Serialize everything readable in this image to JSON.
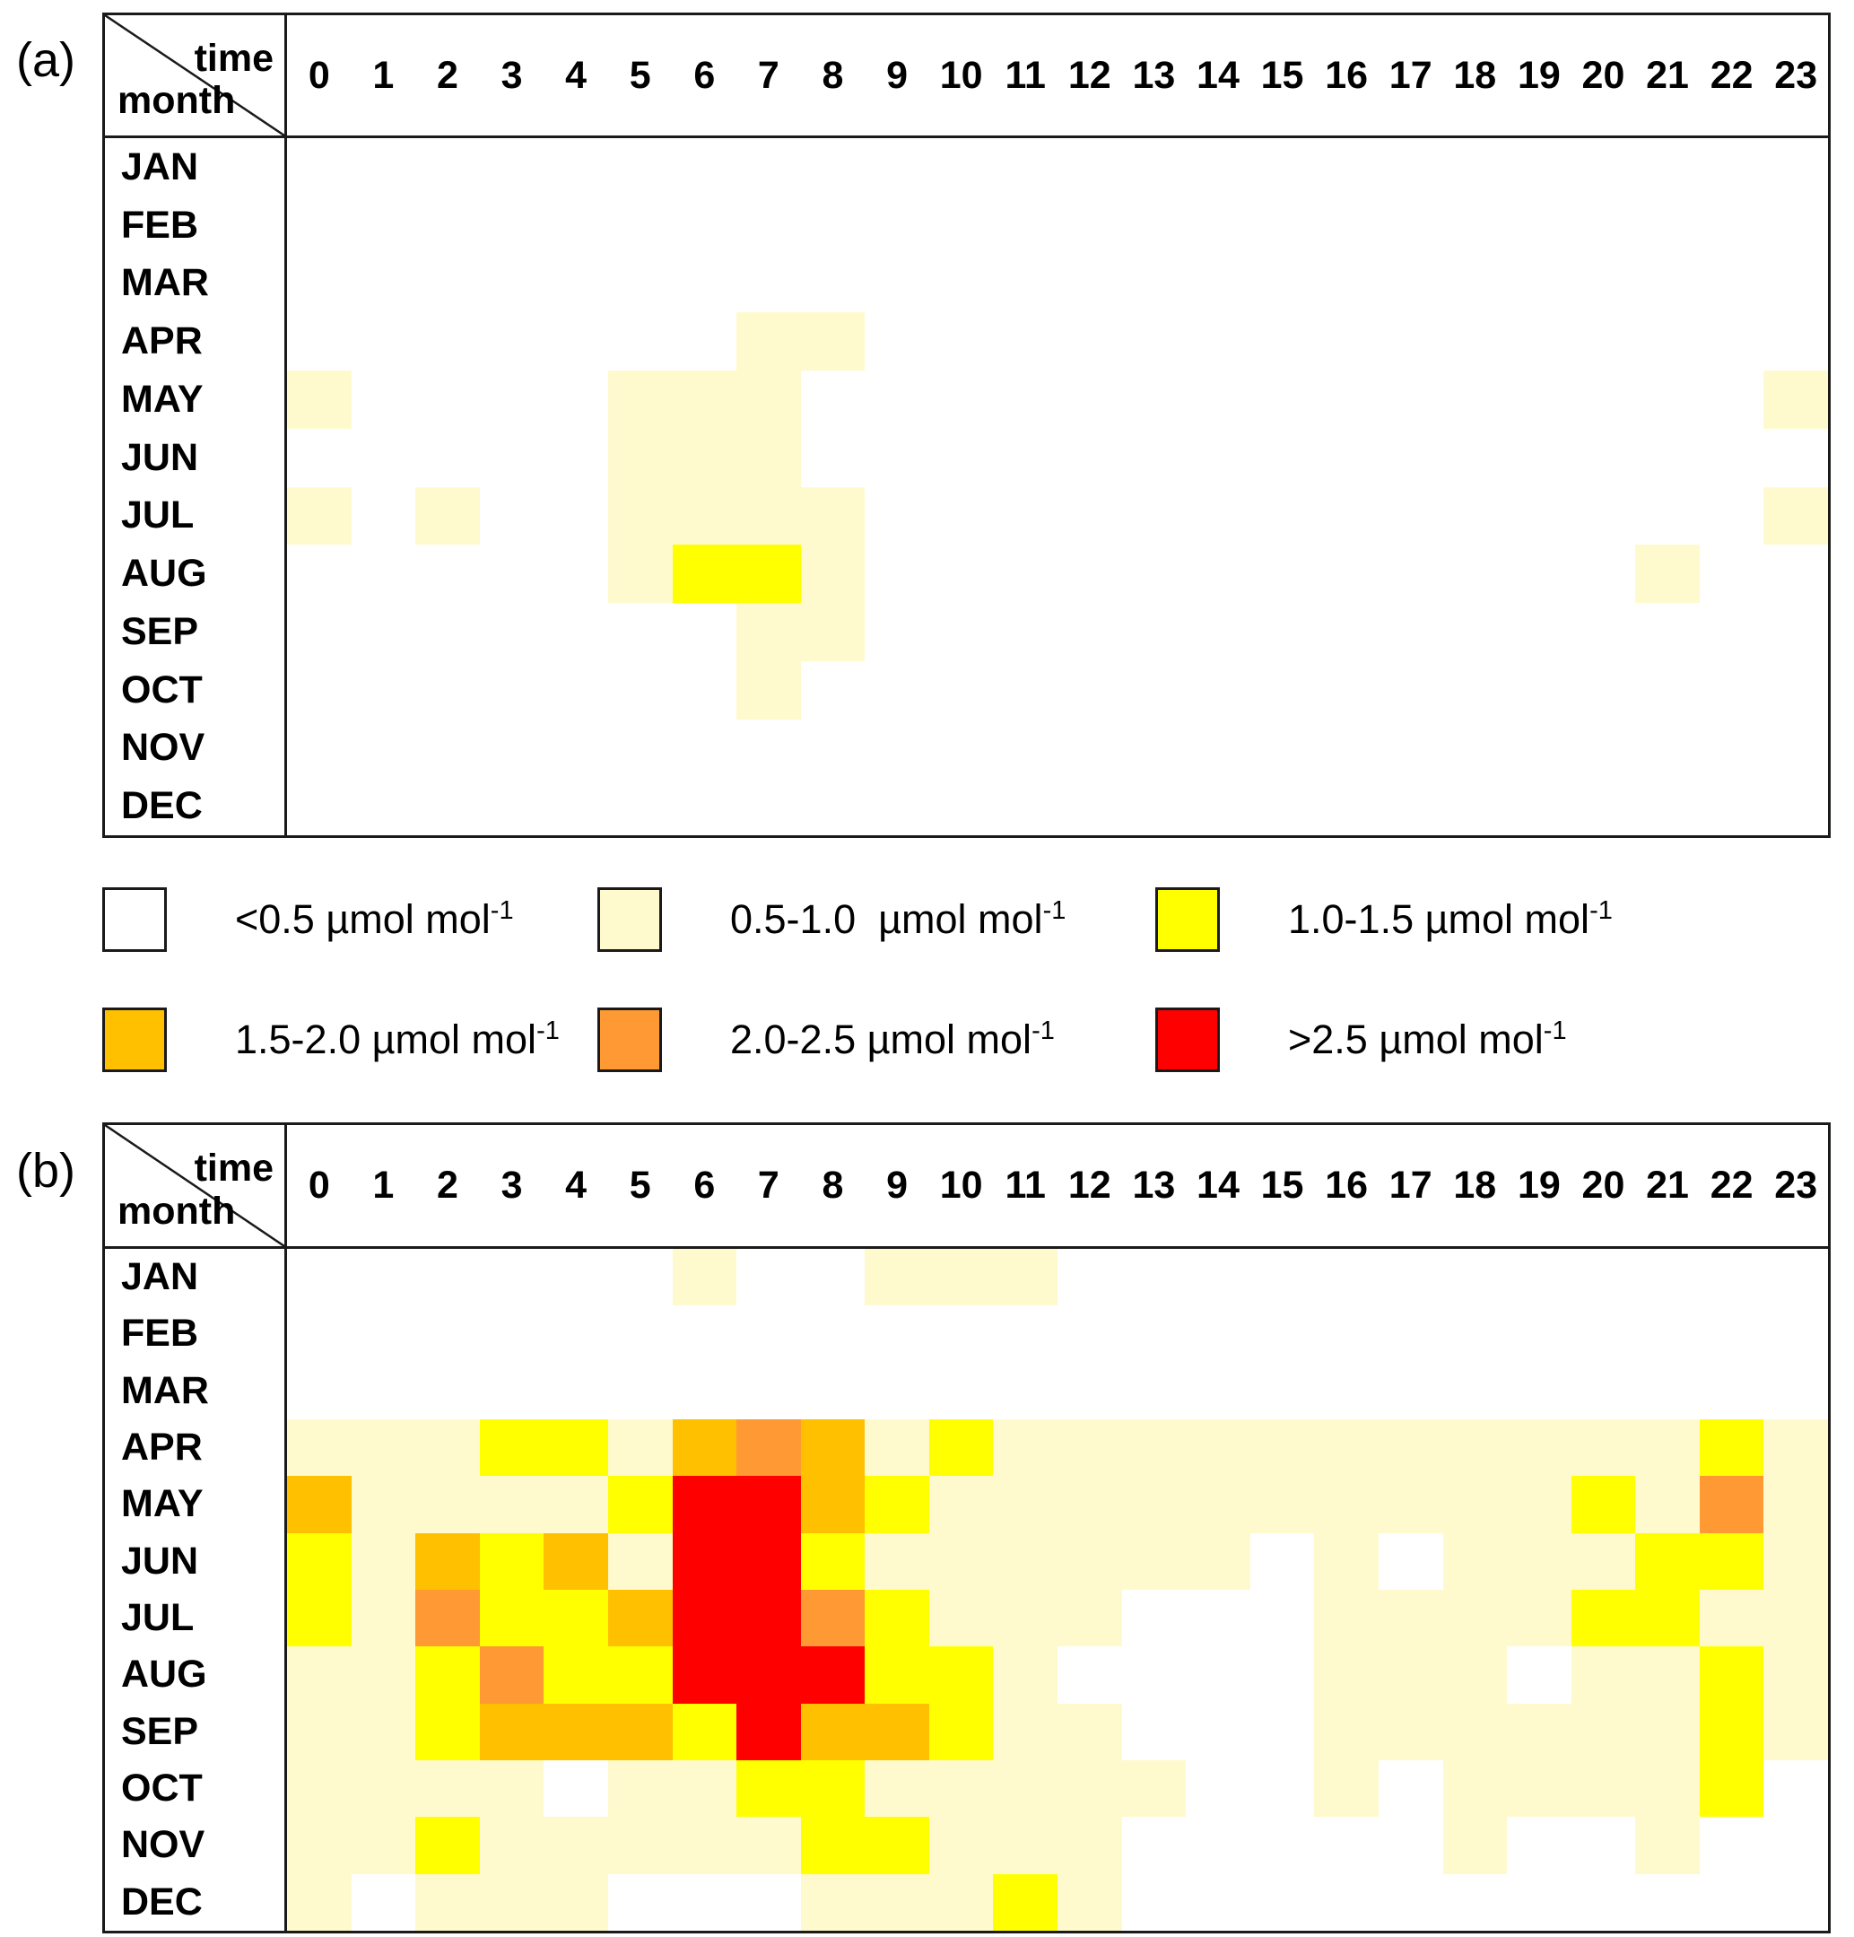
{
  "panels": [
    {
      "label": "(a)"
    },
    {
      "label": "(b)"
    }
  ],
  "axis": {
    "time_label": "time",
    "month_label": "month"
  },
  "levels": [
    {
      "code": 0,
      "range": "<0.5",
      "color": "#FFFFFF"
    },
    {
      "code": 1,
      "range": "0.5-1.0",
      "color": "#FFFACD"
    },
    {
      "code": 2,
      "range": "1.0-1.5",
      "color": "#FFFF00"
    },
    {
      "code": 3,
      "range": "1.5-2.0",
      "color": "#FFC000"
    },
    {
      "code": 4,
      "range": "2.0-2.5",
      "color": "#FF9933"
    },
    {
      "code": 5,
      "range": ">2.5",
      "color": "#FF0000"
    }
  ],
  "legend": {
    "items": [
      {
        "text": "<0.5 µmol mol",
        "sup": "-1",
        "color": "#FFFFFF"
      },
      {
        "text": "0.5-1.0  µmol mol",
        "sup": "-1",
        "color": "#FFFACD"
      },
      {
        "text": "1.0-1.5 µmol mol",
        "sup": "-1",
        "color": "#FFFF00"
      },
      {
        "text": "1.5-2.0 µmol mol",
        "sup": "-1",
        "color": "#FFC000"
      },
      {
        "text": "2.0-2.5 µmol mol",
        "sup": "-1",
        "color": "#FF9933"
      },
      {
        "text": ">2.5 µmol mol",
        "sup": "-1",
        "color": "#FF0000"
      }
    ]
  },
  "chart_data": [
    {
      "type": "heatmap",
      "panel": "(a)",
      "x_axis_label": "time",
      "y_axis_label": "month",
      "unit": "µmol mol-1",
      "bin_ranges": [
        "<0.5",
        "0.5-1.0",
        "1.0-1.5",
        "1.5-2.0",
        "2.0-2.5",
        ">2.5"
      ],
      "values_are_bin_indices": true,
      "x": [
        "0",
        "1",
        "2",
        "3",
        "4",
        "5",
        "6",
        "7",
        "8",
        "9",
        "10",
        "11",
        "12",
        "13",
        "14",
        "15",
        "16",
        "17",
        "18",
        "19",
        "20",
        "21",
        "22",
        "23"
      ],
      "y": [
        "JAN",
        "FEB",
        "MAR",
        "APR",
        "MAY",
        "JUN",
        "JUL",
        "AUG",
        "SEP",
        "OCT",
        "NOV",
        "DEC"
      ],
      "values": [
        [
          0,
          0,
          0,
          0,
          0,
          0,
          0,
          0,
          0,
          0,
          0,
          0,
          0,
          0,
          0,
          0,
          0,
          0,
          0,
          0,
          0,
          0,
          0,
          0
        ],
        [
          0,
          0,
          0,
          0,
          0,
          0,
          0,
          0,
          0,
          0,
          0,
          0,
          0,
          0,
          0,
          0,
          0,
          0,
          0,
          0,
          0,
          0,
          0,
          0
        ],
        [
          0,
          0,
          0,
          0,
          0,
          0,
          0,
          0,
          0,
          0,
          0,
          0,
          0,
          0,
          0,
          0,
          0,
          0,
          0,
          0,
          0,
          0,
          0,
          0
        ],
        [
          0,
          0,
          0,
          0,
          0,
          0,
          0,
          1,
          1,
          0,
          0,
          0,
          0,
          0,
          0,
          0,
          0,
          0,
          0,
          0,
          0,
          0,
          0,
          0
        ],
        [
          1,
          0,
          0,
          0,
          0,
          1,
          1,
          1,
          0,
          0,
          0,
          0,
          0,
          0,
          0,
          0,
          0,
          0,
          0,
          0,
          0,
          0,
          0,
          1
        ],
        [
          0,
          0,
          0,
          0,
          0,
          1,
          1,
          1,
          0,
          0,
          0,
          0,
          0,
          0,
          0,
          0,
          0,
          0,
          0,
          0,
          0,
          0,
          0,
          0
        ],
        [
          1,
          0,
          1,
          0,
          0,
          1,
          1,
          1,
          1,
          0,
          0,
          0,
          0,
          0,
          0,
          0,
          0,
          0,
          0,
          0,
          0,
          0,
          0,
          1
        ],
        [
          0,
          0,
          0,
          0,
          0,
          1,
          2,
          2,
          1,
          0,
          0,
          0,
          0,
          0,
          0,
          0,
          0,
          0,
          0,
          0,
          0,
          1,
          0,
          0
        ],
        [
          0,
          0,
          0,
          0,
          0,
          0,
          0,
          1,
          1,
          0,
          0,
          0,
          0,
          0,
          0,
          0,
          0,
          0,
          0,
          0,
          0,
          0,
          0,
          0
        ],
        [
          0,
          0,
          0,
          0,
          0,
          0,
          0,
          1,
          0,
          0,
          0,
          0,
          0,
          0,
          0,
          0,
          0,
          0,
          0,
          0,
          0,
          0,
          0,
          0
        ],
        [
          0,
          0,
          0,
          0,
          0,
          0,
          0,
          0,
          0,
          0,
          0,
          0,
          0,
          0,
          0,
          0,
          0,
          0,
          0,
          0,
          0,
          0,
          0,
          0
        ],
        [
          0,
          0,
          0,
          0,
          0,
          0,
          0,
          0,
          0,
          0,
          0,
          0,
          0,
          0,
          0,
          0,
          0,
          0,
          0,
          0,
          0,
          0,
          0,
          0
        ]
      ]
    },
    {
      "type": "heatmap",
      "panel": "(b)",
      "x_axis_label": "time",
      "y_axis_label": "month",
      "unit": "µmol mol-1",
      "bin_ranges": [
        "<0.5",
        "0.5-1.0",
        "1.0-1.5",
        "1.5-2.0",
        "2.0-2.5",
        ">2.5"
      ],
      "values_are_bin_indices": true,
      "x": [
        "0",
        "1",
        "2",
        "3",
        "4",
        "5",
        "6",
        "7",
        "8",
        "9",
        "10",
        "11",
        "12",
        "13",
        "14",
        "15",
        "16",
        "17",
        "18",
        "19",
        "20",
        "21",
        "22",
        "23"
      ],
      "y": [
        "JAN",
        "FEB",
        "MAR",
        "APR",
        "MAY",
        "JUN",
        "JUL",
        "AUG",
        "SEP",
        "OCT",
        "NOV",
        "DEC"
      ],
      "values": [
        [
          0,
          0,
          0,
          0,
          0,
          0,
          1,
          0,
          0,
          1,
          1,
          1,
          0,
          0,
          0,
          0,
          0,
          0,
          0,
          0,
          0,
          0,
          0,
          0
        ],
        [
          0,
          0,
          0,
          0,
          0,
          0,
          0,
          0,
          0,
          0,
          0,
          0,
          0,
          0,
          0,
          0,
          0,
          0,
          0,
          0,
          0,
          0,
          0,
          0
        ],
        [
          0,
          0,
          0,
          0,
          0,
          0,
          0,
          0,
          0,
          0,
          0,
          0,
          0,
          0,
          0,
          0,
          0,
          0,
          0,
          0,
          0,
          0,
          0,
          0
        ],
        [
          1,
          1,
          1,
          2,
          2,
          1,
          3,
          4,
          3,
          1,
          2,
          1,
          1,
          1,
          1,
          1,
          1,
          1,
          1,
          1,
          1,
          1,
          2,
          1
        ],
        [
          3,
          1,
          1,
          1,
          1,
          2,
          5,
          5,
          3,
          2,
          1,
          1,
          1,
          1,
          1,
          1,
          1,
          1,
          1,
          1,
          2,
          1,
          4,
          1
        ],
        [
          2,
          1,
          3,
          2,
          3,
          1,
          5,
          5,
          2,
          1,
          1,
          1,
          1,
          1,
          1,
          0,
          1,
          0,
          1,
          1,
          1,
          2,
          2,
          1
        ],
        [
          2,
          1,
          4,
          2,
          2,
          3,
          5,
          5,
          4,
          2,
          1,
          1,
          1,
          0,
          0,
          0,
          1,
          1,
          1,
          1,
          2,
          2,
          1,
          1
        ],
        [
          1,
          1,
          2,
          4,
          2,
          2,
          5,
          5,
          5,
          2,
          2,
          1,
          0,
          0,
          0,
          0,
          1,
          1,
          1,
          0,
          1,
          1,
          2,
          1
        ],
        [
          1,
          1,
          2,
          3,
          3,
          3,
          2,
          5,
          3,
          3,
          2,
          1,
          1,
          0,
          0,
          0,
          1,
          1,
          1,
          1,
          1,
          1,
          2,
          1
        ],
        [
          1,
          1,
          1,
          1,
          0,
          1,
          1,
          2,
          2,
          1,
          1,
          1,
          1,
          1,
          0,
          0,
          1,
          0,
          1,
          1,
          1,
          1,
          2,
          0
        ],
        [
          1,
          1,
          2,
          1,
          1,
          1,
          1,
          1,
          2,
          2,
          1,
          1,
          1,
          0,
          0,
          0,
          0,
          0,
          1,
          0,
          0,
          1,
          0,
          0
        ],
        [
          1,
          0,
          1,
          1,
          1,
          0,
          0,
          0,
          1,
          1,
          1,
          2,
          1,
          0,
          0,
          0,
          0,
          0,
          0,
          0,
          0,
          0,
          0,
          0
        ]
      ]
    }
  ]
}
